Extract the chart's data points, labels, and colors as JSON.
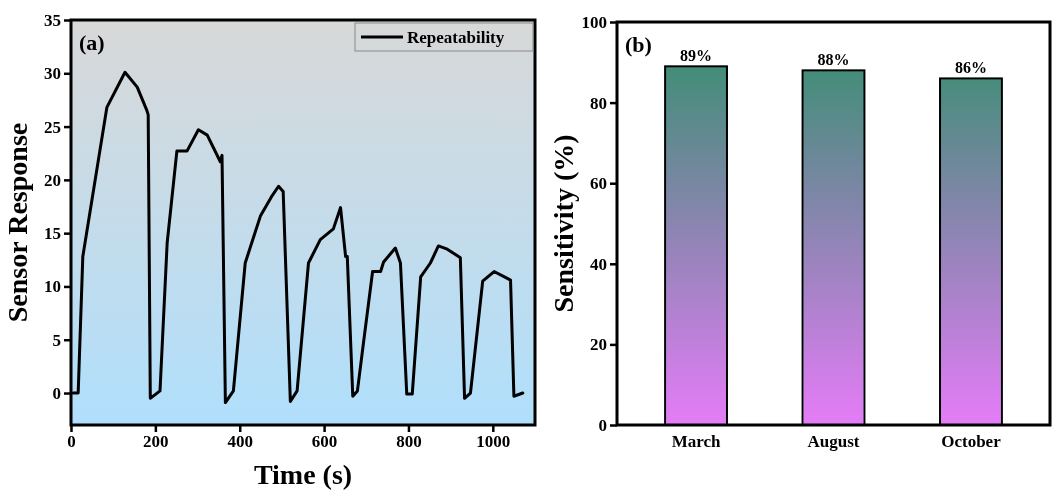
{
  "chart_data": [
    {
      "type": "line",
      "xlabel": "Time (s)",
      "ylabel": "Sensor Response",
      "annotations": [
        "(a)"
      ],
      "legend": "top right",
      "xlim": [
        0,
        1100
      ],
      "xticks": [
        0,
        200,
        400,
        600,
        800,
        1000
      ],
      "ylim": [
        -3,
        35
      ],
      "yticks": [
        0,
        5,
        10,
        15,
        20,
        25,
        30,
        35
      ],
      "x": [
        5,
        17,
        28,
        50,
        85,
        128,
        157,
        180,
        183,
        188,
        211,
        228,
        251,
        275,
        302,
        323,
        354,
        358,
        366,
        385,
        413,
        449,
        475,
        492,
        503,
        520,
        536,
        563,
        591,
        622,
        639,
        651,
        655,
        668,
        679,
        694,
        715,
        734,
        741,
        769,
        781,
        796,
        809,
        829,
        852,
        871,
        892,
        923,
        933,
        947,
        976,
        1003,
        1042,
        1050,
        1071
      ],
      "series": [
        {
          "name": "Repeatability",
          "color": "#000000",
          "values": [
            0,
            0,
            12.8,
            18.2,
            26.8,
            30.1,
            28.7,
            26.5,
            26.1,
            -0.5,
            0.2,
            14.1,
            22.7,
            22.7,
            24.7,
            24.2,
            21.7,
            22.3,
            -0.9,
            0.2,
            12.2,
            16.6,
            18.4,
            19.4,
            18.9,
            -0.8,
            0.2,
            12.2,
            14.4,
            15.4,
            17.4,
            12.8,
            12.8,
            -0.3,
            0.2,
            4.9,
            11.4,
            11.4,
            12.3,
            13.6,
            12.2,
            -0.1,
            -0.1,
            10.9,
            12.2,
            13.8,
            13.5,
            12.7,
            -0.5,
            0,
            10.5,
            11.4,
            10.6,
            -0.3,
            0
          ]
        }
      ]
    },
    {
      "type": "bar",
      "ylabel": "Sensitivity (%)",
      "annotations": [
        "(b)"
      ],
      "categories": [
        "March",
        "August",
        "October"
      ],
      "ylim": [
        0,
        100
      ],
      "yticks": [
        0,
        20,
        40,
        60,
        80,
        100
      ],
      "series": [
        {
          "color": "#2e8f68",
          "values": [
            89,
            88,
            86
          ],
          "value_labels": [
            "89%",
            "88%",
            "86%"
          ]
        }
      ]
    }
  ]
}
